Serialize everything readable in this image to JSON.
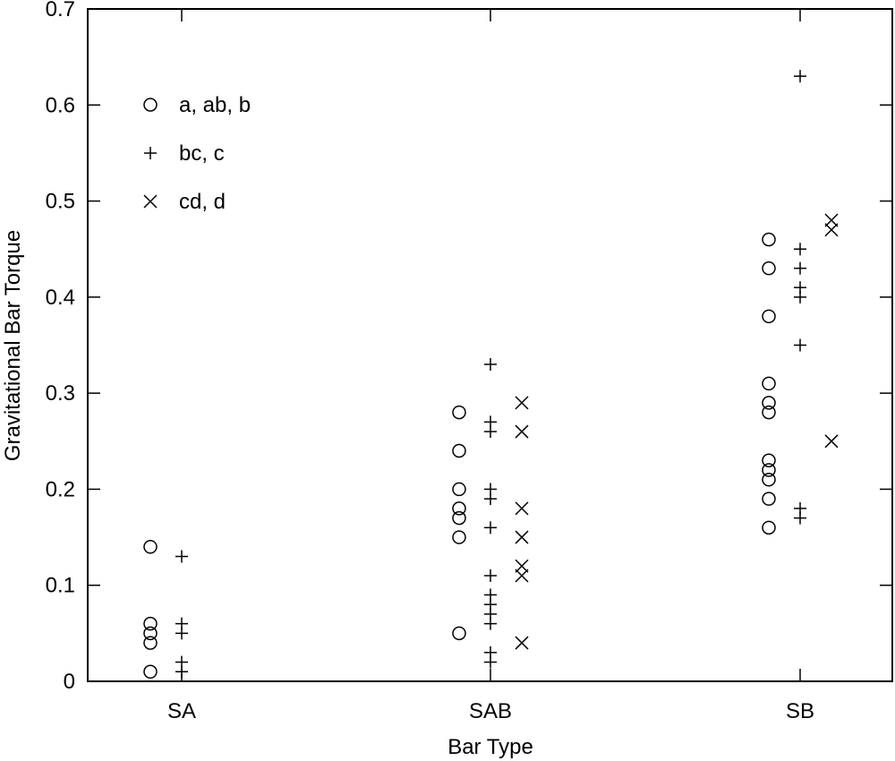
{
  "chart_data": {
    "type": "scatter",
    "title": "",
    "xlabel": "Bar Type",
    "ylabel": "Gravitational Bar Torque",
    "categories": [
      "SA",
      "SAB",
      "SB"
    ],
    "ylim": [
      0,
      0.7
    ],
    "yticks": [
      "0",
      "0.1",
      "0.2",
      "0.3",
      "0.4",
      "0.5",
      "0.6",
      "0.7"
    ],
    "ytick_values": [
      0,
      0.1,
      0.2,
      0.3,
      0.4,
      0.5,
      0.6,
      0.7
    ],
    "grid": false,
    "legend_position": "top-left",
    "series": [
      {
        "name": "a, ab, b",
        "marker": "circle",
        "values": [
          [
            0.14,
            0.06,
            0.05,
            0.04,
            0.01
          ],
          [
            0.28,
            0.24,
            0.2,
            0.18,
            0.17,
            0.15,
            0.05
          ],
          [
            0.46,
            0.43,
            0.38,
            0.31,
            0.29,
            0.28,
            0.23,
            0.22,
            0.21,
            0.19,
            0.16
          ]
        ]
      },
      {
        "name": "bc, c",
        "marker": "plus",
        "values": [
          [
            0.13,
            0.06,
            0.05,
            0.02,
            0.01
          ],
          [
            0.33,
            0.27,
            0.26,
            0.2,
            0.19,
            0.16,
            0.11,
            0.09,
            0.08,
            0.07,
            0.06,
            0.03,
            0.02
          ],
          [
            0.63,
            0.45,
            0.43,
            0.41,
            0.4,
            0.35,
            0.18,
            0.17
          ]
        ]
      },
      {
        "name": "cd, d",
        "marker": "cross",
        "values": [
          [],
          [
            0.29,
            0.26,
            0.18,
            0.15,
            0.12,
            0.11,
            0.04
          ],
          [
            0.48,
            0.47,
            0.25
          ]
        ]
      }
    ]
  }
}
